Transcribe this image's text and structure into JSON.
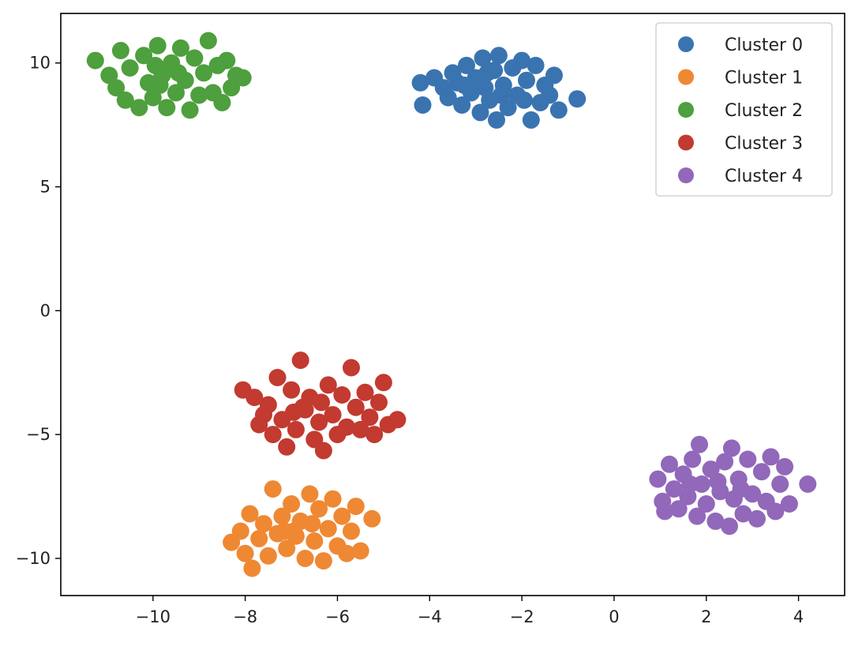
{
  "chart_data": {
    "type": "scatter",
    "title": "",
    "xlabel": "",
    "ylabel": "",
    "xlim": [
      -12,
      5
    ],
    "ylim": [
      -11.5,
      12
    ],
    "xticks": [
      -10,
      -8,
      -6,
      -4,
      -2,
      0,
      2,
      4
    ],
    "xtick_labels": [
      "−10",
      "−8",
      "−6",
      "−4",
      "−2",
      "0",
      "2",
      "4"
    ],
    "yticks": [
      10,
      5,
      0,
      -5,
      -10
    ],
    "ytick_labels": [
      "10",
      "5",
      "0",
      "−5",
      "−10"
    ],
    "grid": false,
    "legend_position": "top-right",
    "series": [
      {
        "name": "Cluster 0",
        "color": "#3a74b0",
        "points": [
          [
            -4.2,
            9.2
          ],
          [
            -4.15,
            8.3
          ],
          [
            -3.9,
            9.4
          ],
          [
            -3.7,
            9.0
          ],
          [
            -3.6,
            8.6
          ],
          [
            -3.5,
            9.6
          ],
          [
            -3.4,
            9.2
          ],
          [
            -3.3,
            8.3
          ],
          [
            -3.2,
            9.9
          ],
          [
            -3.1,
            8.8
          ],
          [
            -3.0,
            9.4
          ],
          [
            -2.9,
            8.0
          ],
          [
            -2.85,
            10.2
          ],
          [
            -2.8,
            9.0
          ],
          [
            -2.7,
            8.5
          ],
          [
            -2.6,
            9.7
          ],
          [
            -2.55,
            7.7
          ],
          [
            -2.5,
            10.3
          ],
          [
            -2.4,
            9.1
          ],
          [
            -2.3,
            8.2
          ],
          [
            -2.2,
            9.8
          ],
          [
            -2.1,
            8.7
          ],
          [
            -2.0,
            10.1
          ],
          [
            -1.9,
            9.3
          ],
          [
            -1.8,
            7.7
          ],
          [
            -1.7,
            9.9
          ],
          [
            -1.6,
            8.4
          ],
          [
            -1.5,
            9.1
          ],
          [
            -1.4,
            8.7
          ],
          [
            -1.3,
            9.5
          ],
          [
            -1.2,
            8.1
          ],
          [
            -0.8,
            8.55
          ],
          [
            -2.75,
            9.6
          ],
          [
            -2.45,
            8.7
          ],
          [
            -3.25,
            9.1
          ],
          [
            -1.95,
            8.5
          ]
        ]
      },
      {
        "name": "Cluster 1",
        "color": "#ef8833",
        "points": [
          [
            -8.3,
            -9.35
          ],
          [
            -8.1,
            -8.9
          ],
          [
            -8.0,
            -9.8
          ],
          [
            -7.9,
            -8.2
          ],
          [
            -7.85,
            -10.4
          ],
          [
            -7.7,
            -9.2
          ],
          [
            -7.6,
            -8.6
          ],
          [
            -7.5,
            -9.9
          ],
          [
            -7.4,
            -7.2
          ],
          [
            -7.3,
            -9.0
          ],
          [
            -7.2,
            -8.3
          ],
          [
            -7.1,
            -9.6
          ],
          [
            -7.0,
            -7.8
          ],
          [
            -6.9,
            -9.1
          ],
          [
            -6.8,
            -8.5
          ],
          [
            -6.7,
            -10.0
          ],
          [
            -6.6,
            -7.4
          ],
          [
            -6.5,
            -9.3
          ],
          [
            -6.4,
            -8.0
          ],
          [
            -6.3,
            -10.1
          ],
          [
            -6.2,
            -8.8
          ],
          [
            -6.1,
            -7.6
          ],
          [
            -6.0,
            -9.5
          ],
          [
            -5.9,
            -8.3
          ],
          [
            -5.8,
            -9.8
          ],
          [
            -5.7,
            -8.9
          ],
          [
            -5.6,
            -7.9
          ],
          [
            -5.5,
            -9.7
          ],
          [
            -5.25,
            -8.4
          ],
          [
            -6.95,
            -8.9
          ],
          [
            -6.55,
            -8.6
          ],
          [
            -7.15,
            -8.9
          ]
        ]
      },
      {
        "name": "Cluster 2",
        "color": "#4e9f3d",
        "points": [
          [
            -11.25,
            10.1
          ],
          [
            -10.95,
            9.5
          ],
          [
            -10.8,
            9.0
          ],
          [
            -10.7,
            10.5
          ],
          [
            -10.6,
            8.5
          ],
          [
            -10.5,
            9.8
          ],
          [
            -10.3,
            8.2
          ],
          [
            -10.2,
            10.3
          ],
          [
            -10.1,
            9.2
          ],
          [
            -10.0,
            8.6
          ],
          [
            -9.9,
            10.7
          ],
          [
            -9.8,
            9.5
          ],
          [
            -9.7,
            8.2
          ],
          [
            -9.6,
            10.0
          ],
          [
            -9.5,
            8.8
          ],
          [
            -9.4,
            10.6
          ],
          [
            -9.3,
            9.3
          ],
          [
            -9.2,
            8.1
          ],
          [
            -9.1,
            10.2
          ],
          [
            -9.0,
            8.7
          ],
          [
            -8.9,
            9.6
          ],
          [
            -8.8,
            10.9
          ],
          [
            -8.7,
            8.8
          ],
          [
            -8.6,
            9.9
          ],
          [
            -8.5,
            8.4
          ],
          [
            -8.4,
            10.1
          ],
          [
            -8.3,
            9.0
          ],
          [
            -8.2,
            9.5
          ],
          [
            -8.05,
            9.4
          ],
          [
            -9.85,
            9.1
          ],
          [
            -9.45,
            9.6
          ],
          [
            -9.95,
            9.9
          ]
        ]
      },
      {
        "name": "Cluster 3",
        "color": "#c23a30",
        "points": [
          [
            -8.05,
            -3.2
          ],
          [
            -7.8,
            -3.5
          ],
          [
            -7.7,
            -4.6
          ],
          [
            -7.6,
            -4.2
          ],
          [
            -7.5,
            -3.8
          ],
          [
            -7.4,
            -5.0
          ],
          [
            -7.3,
            -2.7
          ],
          [
            -7.2,
            -4.4
          ],
          [
            -7.1,
            -5.5
          ],
          [
            -7.0,
            -3.2
          ],
          [
            -6.9,
            -4.8
          ],
          [
            -6.8,
            -2.0
          ],
          [
            -6.7,
            -4.0
          ],
          [
            -6.6,
            -3.5
          ],
          [
            -6.5,
            -5.2
          ],
          [
            -6.4,
            -4.5
          ],
          [
            -6.3,
            -5.65
          ],
          [
            -6.2,
            -3.0
          ],
          [
            -6.1,
            -4.2
          ],
          [
            -6.0,
            -5.0
          ],
          [
            -5.9,
            -3.4
          ],
          [
            -5.8,
            -4.7
          ],
          [
            -5.7,
            -2.3
          ],
          [
            -5.6,
            -3.9
          ],
          [
            -5.5,
            -4.8
          ],
          [
            -5.4,
            -3.3
          ],
          [
            -5.3,
            -4.3
          ],
          [
            -5.2,
            -5.0
          ],
          [
            -5.1,
            -3.7
          ],
          [
            -5.0,
            -2.9
          ],
          [
            -4.9,
            -4.6
          ],
          [
            -4.7,
            -4.4
          ],
          [
            -6.75,
            -3.9
          ],
          [
            -6.35,
            -3.7
          ],
          [
            -6.95,
            -4.1
          ]
        ]
      },
      {
        "name": "Cluster 4",
        "color": "#9168ba",
        "points": [
          [
            0.95,
            -6.8
          ],
          [
            1.05,
            -7.7
          ],
          [
            1.1,
            -8.1
          ],
          [
            1.2,
            -6.2
          ],
          [
            1.3,
            -7.2
          ],
          [
            1.4,
            -8.0
          ],
          [
            1.5,
            -6.6
          ],
          [
            1.6,
            -7.5
          ],
          [
            1.7,
            -6.0
          ],
          [
            1.8,
            -8.3
          ],
          [
            1.85,
            -5.4
          ],
          [
            1.9,
            -7.0
          ],
          [
            2.0,
            -7.8
          ],
          [
            2.1,
            -6.4
          ],
          [
            2.2,
            -8.5
          ],
          [
            2.3,
            -7.3
          ],
          [
            2.4,
            -6.1
          ],
          [
            2.5,
            -8.7
          ],
          [
            2.55,
            -5.55
          ],
          [
            2.6,
            -7.6
          ],
          [
            2.7,
            -6.8
          ],
          [
            2.8,
            -8.2
          ],
          [
            2.9,
            -6.0
          ],
          [
            3.0,
            -7.4
          ],
          [
            3.1,
            -8.4
          ],
          [
            3.2,
            -6.5
          ],
          [
            3.3,
            -7.7
          ],
          [
            3.4,
            -5.9
          ],
          [
            3.5,
            -8.1
          ],
          [
            3.6,
            -7.0
          ],
          [
            3.7,
            -6.3
          ],
          [
            3.8,
            -7.8
          ],
          [
            4.2,
            -7.0
          ],
          [
            2.25,
            -6.9
          ],
          [
            2.75,
            -7.2
          ],
          [
            1.65,
            -7.0
          ]
        ]
      }
    ]
  }
}
